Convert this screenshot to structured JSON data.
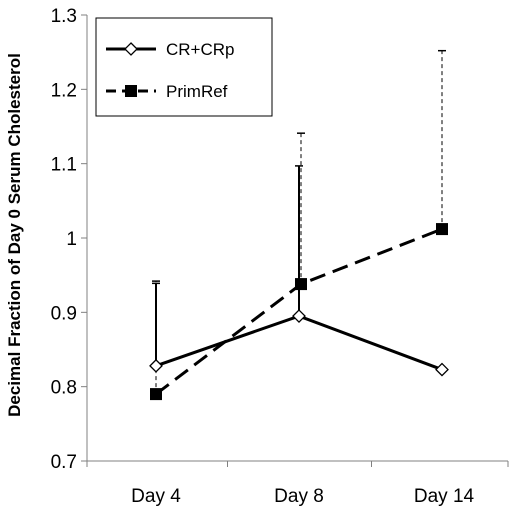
{
  "chart_data": {
    "type": "line",
    "title": "",
    "xlabel": "",
    "ylabel": "Decimal Fraction of Day 0 Serum Cholesterol",
    "categories": [
      "Day 4",
      "Day 8",
      "Day 14"
    ],
    "ylim": [
      0.7,
      1.3
    ],
    "yticks": [
      "0.7",
      "0.8",
      "0.9",
      "1",
      "1.1",
      "1.2",
      "1.3"
    ],
    "grid": false,
    "legend_position": "top-left",
    "series": [
      {
        "name": "CR+CRp",
        "line_style": "solid",
        "marker": "open-diamond",
        "values": [
          0.828,
          0.895,
          0.823
        ],
        "error_upper": [
          0.939,
          1.097,
          null
        ]
      },
      {
        "name": "PrimRef",
        "line_style": "dashed",
        "marker": "filled-square",
        "values": [
          0.79,
          0.938,
          1.012
        ],
        "error_upper": [
          0.942,
          1.141,
          1.252
        ]
      }
    ]
  }
}
